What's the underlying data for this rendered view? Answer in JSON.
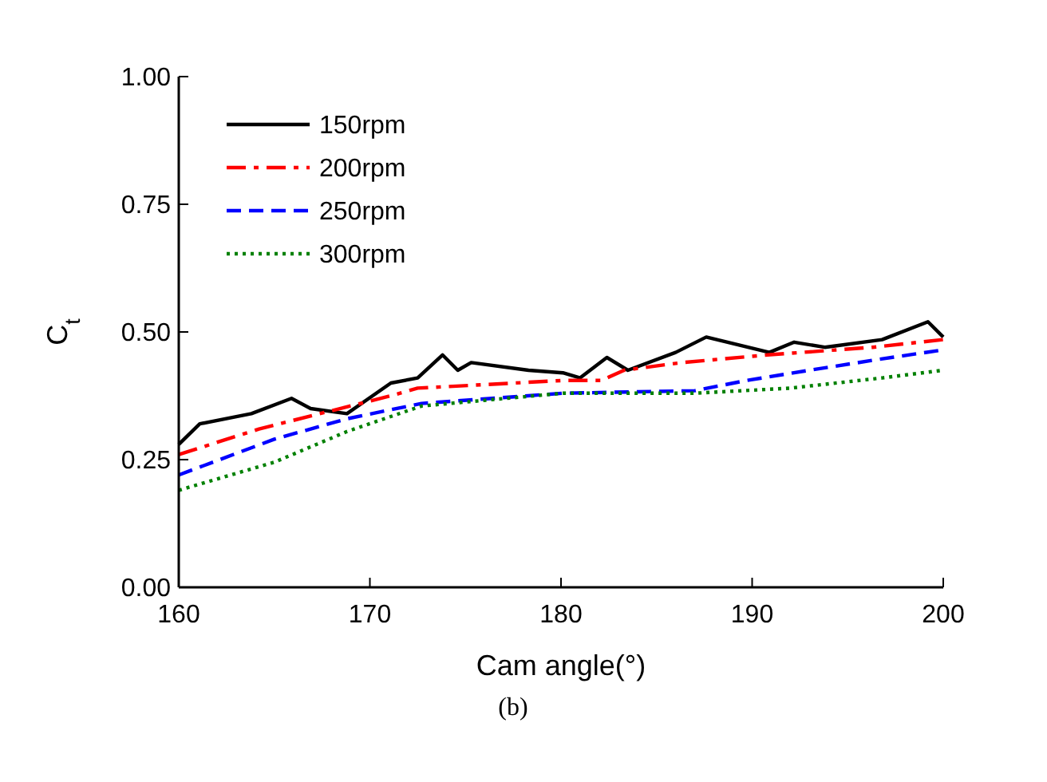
{
  "chart_data": {
    "type": "line",
    "xlabel": "Cam angle(°)",
    "ylabel": "C$_{t}$",
    "annotations": [
      "(b)"
    ],
    "xlim": [
      160,
      200
    ],
    "xticks": [
      160,
      170,
      180,
      190,
      200
    ],
    "ylim": [
      0,
      1
    ],
    "yticks": [
      {
        "value": 0,
        "label": "0.00"
      },
      {
        "value": 0.25,
        "label": "0.25"
      },
      {
        "value": 0.5,
        "label": "0.50"
      },
      {
        "value": 0.75,
        "label": "0.75"
      },
      {
        "value": 1,
        "label": "1.00"
      }
    ],
    "grid": false,
    "legend": "top left",
    "marker": "none",
    "series": [
      {
        "name": "150rpm",
        "color": "#000000",
        "line_style": "solid",
        "x": [
          160,
          161.1,
          163.8,
          165.9,
          166.9,
          168.8,
          171.1,
          172.5,
          173.8,
          174.6,
          175.3,
          178.3,
          180.1,
          181,
          182.4,
          183.5,
          186,
          187.6,
          190.9,
          192.2,
          193.8,
          196.8,
          199.2,
          200
        ],
        "values": [
          0.28,
          0.32,
          0.34,
          0.37,
          0.35,
          0.34,
          0.4,
          0.41,
          0.455,
          0.425,
          0.44,
          0.425,
          0.42,
          0.41,
          0.45,
          0.425,
          0.46,
          0.49,
          0.46,
          0.48,
          0.47,
          0.485,
          0.52,
          0.49
        ]
      },
      {
        "name": "200rpm",
        "color": "#ff0000",
        "line_style": "dashdot",
        "x": [
          160,
          164.2,
          171.1,
          172.5,
          180.1,
          182.1,
          183.3,
          186.3,
          190.8,
          196.3,
          200
        ],
        "values": [
          0.26,
          0.31,
          0.375,
          0.39,
          0.405,
          0.405,
          0.425,
          0.44,
          0.455,
          0.47,
          0.485
        ]
      },
      {
        "name": "250rpm",
        "color": "#0000ff",
        "line_style": "dashed",
        "x": [
          160,
          165,
          168.8,
          172.7,
          180.1,
          187,
          189.7,
          193,
          196.4,
          200
        ],
        "values": [
          0.22,
          0.29,
          0.33,
          0.36,
          0.38,
          0.385,
          0.405,
          0.425,
          0.445,
          0.465
        ]
      },
      {
        "name": "300rpm",
        "color": "#008000",
        "line_style": "dotted",
        "x": [
          160,
          165,
          168.8,
          172.7,
          180.1,
          187,
          192,
          196.8,
          200
        ],
        "values": [
          0.19,
          0.245,
          0.305,
          0.355,
          0.38,
          0.38,
          0.39,
          0.41,
          0.425
        ]
      }
    ]
  }
}
